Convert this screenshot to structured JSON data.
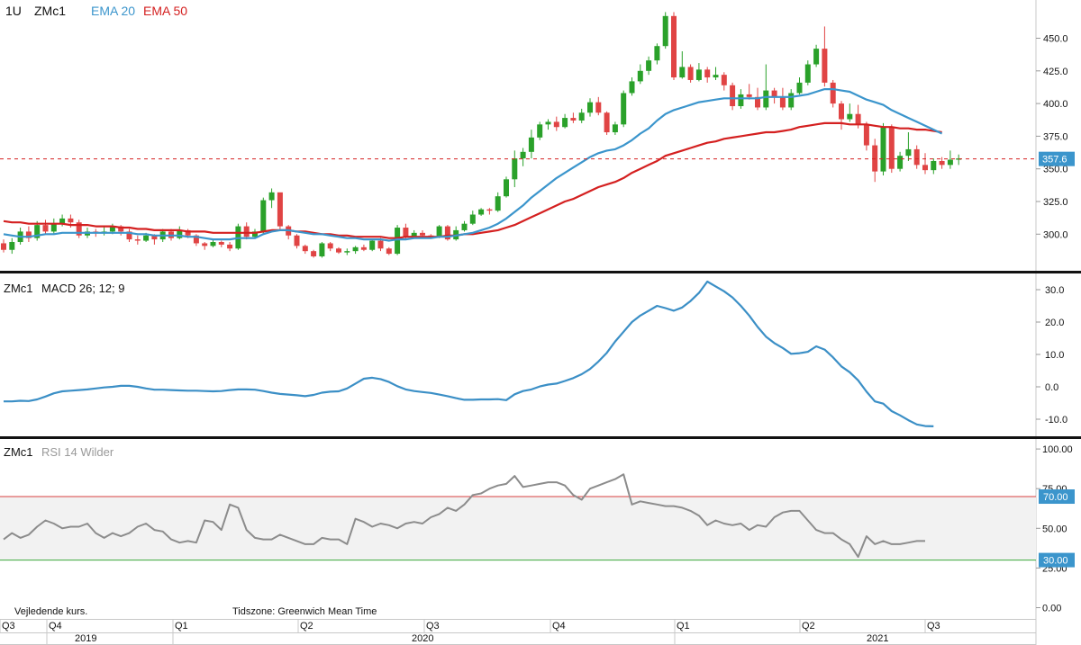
{
  "header": {
    "interval": "1U",
    "symbol": "ZMc1",
    "ema20_label": "EMA 20",
    "ema50_label": "EMA 50"
  },
  "macd_panel": {
    "symbol": "ZMc1",
    "label": "MACD 26; 12; 9"
  },
  "rsi_panel": {
    "symbol": "ZMc1",
    "label": "RSI 14 Wilder"
  },
  "footer": {
    "note": "Vejledende kurs.",
    "timezone": "Tidszone: Greenwich Mean Time"
  },
  "colors": {
    "up": "#2aa12a",
    "down": "#e04444",
    "ema20": "#3b95cc",
    "ema50": "#d42020",
    "macd": "#3b8fc6",
    "rsi": "#8c8c8c",
    "rsi_upper": "#d94040",
    "rsi_lower": "#3aa83a",
    "price_tag": "#3b95cc"
  },
  "chart_data": [
    {
      "type": "candlestick",
      "interval": "weekly",
      "price_axis": {
        "ticks": [
          "300.0",
          "325.0",
          "350.0",
          "375.0",
          "400.0",
          "425.0",
          "450.0"
        ],
        "ylim": [
          280,
          462
        ]
      },
      "last_price": "357.6",
      "x_axis": {
        "quarters": [
          "Q3",
          "Q4",
          "Q1",
          "Q2",
          "Q3",
          "Q4",
          "Q1",
          "Q2",
          "Q3"
        ],
        "years": [
          "2019",
          "2020",
          "2021"
        ]
      },
      "candles": [
        [
          293,
          288,
          296,
          286
        ],
        [
          288,
          294,
          297,
          285
        ],
        [
          294,
          302,
          305,
          292
        ],
        [
          302,
          297,
          306,
          294
        ],
        [
          297,
          307,
          310,
          295
        ],
        [
          307,
          302,
          311,
          300
        ],
        [
          302,
          308,
          312,
          300
        ],
        [
          308,
          312,
          315,
          306
        ],
        [
          312,
          309,
          315,
          305
        ],
        [
          309,
          299,
          311,
          297
        ],
        [
          299,
          302,
          305,
          297
        ],
        [
          302,
          301,
          304,
          298
        ],
        [
          301,
          302,
          306,
          299
        ],
        [
          302,
          306,
          308,
          300
        ],
        [
          306,
          302,
          307,
          299
        ],
        [
          302,
          296,
          304,
          294
        ],
        [
          296,
          295,
          299,
          292
        ],
        [
          295,
          299,
          301,
          294
        ],
        [
          299,
          296,
          300,
          292
        ],
        [
          296,
          302,
          304,
          294
        ],
        [
          302,
          297,
          304,
          295
        ],
        [
          297,
          303,
          306,
          296
        ],
        [
          303,
          299,
          304,
          297
        ],
        [
          299,
          293,
          300,
          291
        ],
        [
          293,
          291,
          294,
          288
        ],
        [
          291,
          294,
          296,
          290
        ],
        [
          294,
          292,
          295,
          290
        ],
        [
          292,
          289,
          294,
          287
        ],
        [
          289,
          306,
          308,
          288
        ],
        [
          306,
          298,
          309,
          296
        ],
        [
          298,
          302,
          304,
          297
        ],
        [
          302,
          326,
          328,
          300
        ],
        [
          326,
          332,
          335,
          320
        ],
        [
          332,
          306,
          329,
          303
        ],
        [
          306,
          299,
          307,
          296
        ],
        [
          299,
          291,
          300,
          289
        ],
        [
          291,
          287,
          292,
          285
        ],
        [
          287,
          283,
          288,
          282
        ],
        [
          283,
          293,
          294,
          282
        ],
        [
          293,
          289,
          294,
          287
        ],
        [
          289,
          286,
          290,
          285
        ],
        [
          286,
          287,
          289,
          284
        ],
        [
          287,
          290,
          291,
          285
        ],
        [
          290,
          288,
          292,
          287
        ],
        [
          288,
          295,
          296,
          287
        ],
        [
          295,
          289,
          297,
          287
        ],
        [
          289,
          285,
          290,
          284
        ],
        [
          285,
          305,
          307,
          284
        ],
        [
          305,
          298,
          308,
          296
        ],
        [
          298,
          301,
          303,
          297
        ],
        [
          301,
          299,
          303,
          297
        ],
        [
          299,
          298,
          300,
          297
        ],
        [
          298,
          306,
          307,
          297
        ],
        [
          306,
          296,
          307,
          295
        ],
        [
          296,
          303,
          306,
          295
        ],
        [
          303,
          308,
          310,
          302
        ],
        [
          308,
          315,
          318,
          307
        ],
        [
          315,
          319,
          320,
          314
        ],
        [
          319,
          318,
          320,
          315
        ],
        [
          318,
          329,
          332,
          317
        ],
        [
          329,
          342,
          344,
          328
        ],
        [
          342,
          358,
          364,
          336
        ],
        [
          358,
          363,
          366,
          352
        ],
        [
          363,
          374,
          380,
          358
        ],
        [
          374,
          384,
          386,
          372
        ],
        [
          384,
          386,
          388,
          380
        ],
        [
          386,
          382,
          390,
          379
        ],
        [
          382,
          389,
          392,
          381
        ],
        [
          389,
          387,
          393,
          385
        ],
        [
          387,
          393,
          396,
          385
        ],
        [
          393,
          401,
          404,
          390
        ],
        [
          401,
          393,
          405,
          391
        ],
        [
          393,
          378,
          394,
          376
        ],
        [
          378,
          384,
          386,
          376
        ],
        [
          384,
          408,
          410,
          382
        ],
        [
          408,
          417,
          420,
          406
        ],
        [
          417,
          425,
          430,
          415
        ],
        [
          425,
          433,
          436,
          422
        ],
        [
          433,
          444,
          446,
          430
        ],
        [
          444,
          467,
          470,
          442
        ],
        [
          467,
          420,
          470,
          418
        ],
        [
          420,
          428,
          440,
          419
        ],
        [
          428,
          418,
          430,
          416
        ],
        [
          418,
          426,
          431,
          417
        ],
        [
          426,
          420,
          428,
          416
        ],
        [
          420,
          422,
          428,
          418
        ],
        [
          422,
          414,
          424,
          410
        ],
        [
          414,
          398,
          416,
          395
        ],
        [
          398,
          407,
          411,
          396
        ],
        [
          407,
          405,
          415,
          403
        ],
        [
          405,
          397,
          412,
          395
        ],
        [
          397,
          410,
          430,
          395
        ],
        [
          410,
          405,
          412,
          400
        ],
        [
          405,
          397,
          412,
          395
        ],
        [
          397,
          408,
          411,
          395
        ],
        [
          408,
          416,
          420,
          407
        ],
        [
          416,
          430,
          433,
          414
        ],
        [
          430,
          442,
          445,
          428
        ],
        [
          442,
          416,
          459,
          413
        ],
        [
          416,
          400,
          418,
          397
        ],
        [
          400,
          388,
          402,
          380
        ],
        [
          388,
          392,
          400,
          386
        ],
        [
          392,
          384,
          399,
          381
        ],
        [
          384,
          368,
          386,
          364
        ],
        [
          368,
          348,
          373,
          340
        ],
        [
          348,
          382,
          385,
          345
        ],
        [
          382,
          350,
          384,
          347
        ],
        [
          350,
          360,
          363,
          348
        ],
        [
          360,
          365,
          378,
          356
        ],
        [
          365,
          353,
          368,
          350
        ],
        [
          353,
          349,
          362,
          346
        ],
        [
          349,
          356,
          358,
          346
        ],
        [
          356,
          353,
          359,
          350
        ],
        [
          353,
          357,
          364,
          350
        ],
        [
          357,
          358,
          361,
          353
        ]
      ],
      "candle_format": [
        "open",
        "close",
        "high",
        "low"
      ],
      "ema20": [
        300,
        299,
        298,
        298,
        299,
        300,
        300,
        301,
        301,
        301,
        301,
        301,
        301,
        301,
        301,
        301,
        300,
        300,
        299,
        299,
        299,
        299,
        298,
        298,
        297,
        296,
        296,
        296,
        297,
        297,
        297,
        300,
        302,
        303,
        303,
        302,
        301,
        300,
        300,
        299,
        298,
        297,
        297,
        296,
        296,
        296,
        295,
        296,
        296,
        297,
        297,
        297,
        298,
        298,
        299,
        300,
        301,
        303,
        305,
        308,
        312,
        317,
        322,
        328,
        333,
        338,
        343,
        347,
        351,
        355,
        359,
        362,
        364,
        365,
        368,
        372,
        377,
        381,
        387,
        392,
        395,
        397,
        399,
        401,
        402,
        403,
        404,
        404,
        404,
        404,
        404,
        405,
        405,
        405,
        405,
        406,
        407,
        409,
        411,
        411,
        410,
        409,
        406,
        403,
        401,
        399,
        395,
        392,
        389,
        386,
        383,
        380,
        377
      ],
      "ema50": [
        310,
        309,
        309,
        308,
        308,
        308,
        308,
        308,
        307,
        307,
        307,
        306,
        306,
        306,
        305,
        305,
        304,
        304,
        303,
        303,
        303,
        303,
        302,
        302,
        302,
        301,
        301,
        301,
        301,
        301,
        301,
        302,
        303,
        303,
        303,
        302,
        302,
        301,
        300,
        300,
        299,
        299,
        298,
        298,
        298,
        298,
        297,
        297,
        298,
        298,
        298,
        298,
        298,
        299,
        299,
        300,
        300,
        301,
        302,
        303,
        305,
        307,
        310,
        313,
        316,
        319,
        322,
        325,
        327,
        330,
        333,
        336,
        338,
        340,
        343,
        347,
        350,
        353,
        356,
        360,
        362,
        364,
        366,
        368,
        370,
        371,
        373,
        374,
        375,
        376,
        377,
        378,
        378,
        379,
        380,
        382,
        383,
        384,
        385,
        385,
        385,
        384,
        384,
        384,
        383,
        382,
        382,
        381,
        381,
        380,
        380,
        379,
        378
      ],
      "series": [
        {
          "name": "EMA 20"
        },
        {
          "name": "EMA 50"
        }
      ]
    },
    {
      "type": "line",
      "name": "MACD 26; 12; 9",
      "axis_ticks": [
        "-10.0",
        "0.0",
        "10.0",
        "20.0",
        "30.0"
      ],
      "ylim": [
        -13,
        33.5
      ],
      "values": [
        -4.5,
        -4.5,
        -4.3,
        -4.4,
        -3.9,
        -3,
        -2,
        -1.4,
        -1.2,
        -1,
        -0.8,
        -0.5,
        -0.2,
        0,
        0.3,
        0.3,
        0,
        -0.5,
        -0.9,
        -0.9,
        -1,
        -1.1,
        -1.2,
        -1.2,
        -1.3,
        -1.4,
        -1.3,
        -1,
        -0.8,
        -0.8,
        -0.9,
        -1.3,
        -1.8,
        -2.2,
        -2.4,
        -2.6,
        -2.9,
        -2.5,
        -1.8,
        -1.5,
        -1.4,
        -0.5,
        1,
        2.5,
        2.8,
        2.4,
        1.5,
        0.2,
        -0.8,
        -1.3,
        -1.6,
        -1.9,
        -2.4,
        -2.9,
        -3.5,
        -4,
        -4,
        -3.9,
        -3.9,
        -3.8,
        -4.1,
        -2.3,
        -1.3,
        -0.8,
        0.1,
        0.7,
        1,
        1.8,
        2.7,
        3.9,
        5.5,
        7.8,
        10.5,
        14,
        17,
        20,
        22,
        23.5,
        25,
        24.3,
        23.5,
        24.5,
        26.5,
        29,
        32.5,
        31,
        29.5,
        27.6,
        25,
        22,
        18.5,
        15.5,
        13.5,
        12,
        10.2,
        10.4,
        10.8,
        12.5,
        11.5,
        9.1,
        6.3,
        4.5,
        2,
        -1.5,
        -4.5,
        -5.2,
        -7.5,
        -8.8,
        -10.3,
        -11.6,
        -12.1,
        -12.2
      ],
      "colors_ref": "macd"
    },
    {
      "type": "line",
      "name": "RSI 14 Wilder",
      "axis_ticks": [
        "0.00",
        "25.00",
        "50.00",
        "75.00",
        "100.00"
      ],
      "ylim": [
        0,
        100
      ],
      "levels": [
        "70.00",
        "30.00"
      ],
      "values": [
        43,
        47,
        44,
        46,
        51,
        55,
        53,
        50,
        51,
        51,
        53,
        47,
        44,
        47,
        45,
        47,
        51,
        53,
        49,
        48,
        43,
        41,
        42,
        41,
        55,
        54,
        49,
        65,
        63,
        49,
        44,
        43,
        43,
        46,
        44,
        42,
        40,
        40,
        44,
        43,
        43,
        40,
        56,
        54,
        51,
        53,
        52,
        50,
        53,
        54,
        53,
        57,
        59,
        63,
        61,
        65,
        71,
        72,
        75,
        77,
        78,
        83,
        76,
        77,
        78,
        79,
        79,
        77,
        71,
        68,
        75,
        77,
        79,
        81,
        84,
        65,
        67,
        66,
        65,
        64,
        64,
        63,
        61,
        58,
        52,
        55,
        53,
        52,
        53,
        49,
        52,
        51,
        57,
        60,
        61,
        61,
        55,
        49,
        47,
        47,
        43,
        40,
        32,
        45,
        40,
        42,
        40,
        40,
        41,
        42,
        42
      ],
      "colors_ref": "rsi"
    }
  ]
}
